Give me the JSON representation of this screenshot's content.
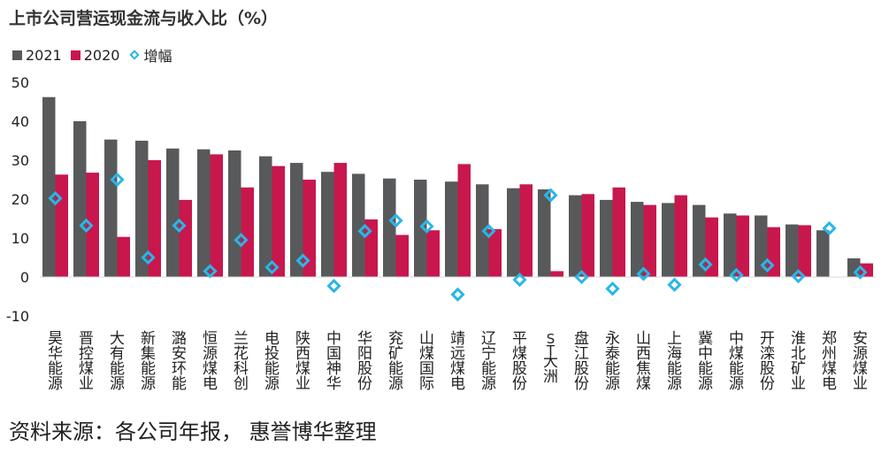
{
  "title": "上市公司营运现金流与收入比（%）",
  "source": "资料来源：各公司年报， 惠誉博华整理",
  "chart_data": {
    "type": "bar",
    "title": "上市公司营运现金流与收入比（%）",
    "ylim": [
      -10,
      50
    ],
    "yticks": [
      -10,
      0,
      10,
      20,
      30,
      40,
      50
    ],
    "grid": false,
    "legend_position": "top-left",
    "categories": [
      "昊华能源",
      "晋控煤业",
      "大有能源",
      "新集能源",
      "潞安环能",
      "恒源煤电",
      "兰花科创",
      "电投能源",
      "陕西煤业",
      "中国神华",
      "华阳股份",
      "兖矿能源",
      "山煤国际",
      "靖远煤电",
      "辽宁能源",
      "平煤股份",
      "ST大洲",
      "盘江股份",
      "永泰能源",
      "山西焦煤",
      "上海能源",
      "冀中能源",
      "中煤能源",
      "开滦股份",
      "淮北矿业",
      "郑州煤电",
      "安源煤业"
    ],
    "series": [
      {
        "name": "2021",
        "color": "#58595b",
        "kind": "bar",
        "values": [
          46.2,
          40.0,
          35.3,
          35.0,
          33.0,
          32.8,
          32.5,
          31.0,
          29.3,
          27.0,
          26.5,
          25.3,
          25.0,
          24.5,
          23.8,
          22.8,
          22.5,
          21.0,
          19.8,
          19.3,
          19.0,
          18.5,
          16.3,
          15.8,
          13.5,
          12.0,
          4.8
        ]
      },
      {
        "name": "2020",
        "color": "#c8174d",
        "kind": "bar",
        "values": [
          26.3,
          26.8,
          10.3,
          30.0,
          19.8,
          31.5,
          23.0,
          28.5,
          25.0,
          29.3,
          14.8,
          10.8,
          12.0,
          29.0,
          12.3,
          23.8,
          1.5,
          21.3,
          23.0,
          18.5,
          21.0,
          15.3,
          15.8,
          12.8,
          13.3,
          null,
          3.5
        ]
      },
      {
        "name": "增幅",
        "color": "#29b6e8",
        "kind": "marker",
        "values": [
          20.2,
          13.2,
          25.0,
          5.0,
          13.2,
          1.5,
          9.5,
          2.5,
          4.2,
          -2.3,
          11.8,
          14.5,
          13.0,
          -4.5,
          11.8,
          -0.7,
          21.0,
          0.0,
          -3.0,
          0.8,
          -2.0,
          3.2,
          0.5,
          3.0,
          0.2,
          12.5,
          1.2
        ]
      }
    ]
  }
}
